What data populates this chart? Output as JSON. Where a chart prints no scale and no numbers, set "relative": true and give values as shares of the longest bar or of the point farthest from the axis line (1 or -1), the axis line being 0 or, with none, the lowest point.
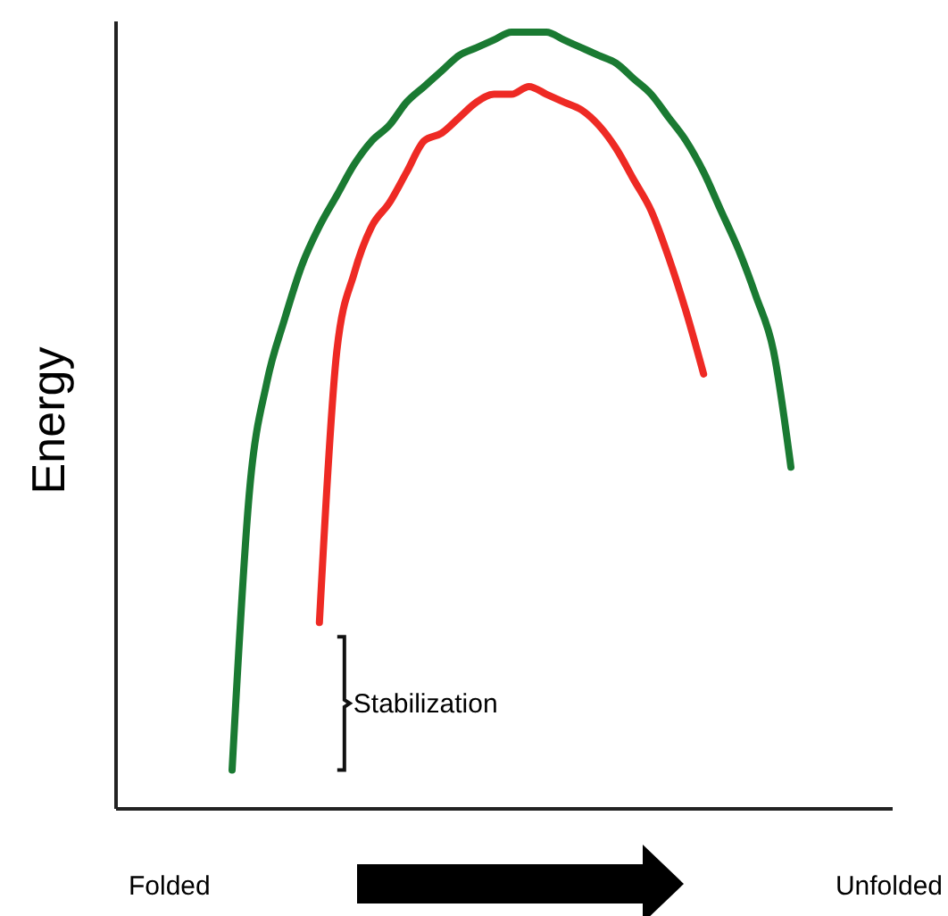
{
  "chart_data": {
    "type": "line",
    "relative": true,
    "ylabel": "Energy",
    "categories": [
      null,
      null,
      null,
      null,
      null,
      null,
      null,
      null,
      null,
      null,
      null,
      null,
      null,
      null,
      null,
      null,
      null,
      null,
      null,
      null,
      null,
      null,
      null,
      null,
      null,
      null,
      null,
      null,
      null,
      null,
      null,
      null,
      null
    ],
    "series": [
      {
        "color": "#1a7a32",
        "values": [
          0.05,
          0.41,
          0.55,
          0.63,
          0.7,
          0.75,
          0.79,
          0.83,
          0.86,
          0.88,
          0.91,
          0.93,
          0.95,
          0.97,
          0.98,
          0.99,
          1.0,
          1.0,
          1.0,
          0.99,
          0.98,
          0.97,
          0.96,
          0.94,
          0.92,
          0.89,
          0.86,
          0.82,
          0.77,
          0.72,
          0.66,
          0.59,
          0.44
        ]
      },
      {
        "color": "#ee2a24",
        "values": [
          null,
          null,
          null,
          null,
          null,
          0.24,
          0.59,
          0.69,
          0.75,
          0.78,
          0.82,
          0.86,
          0.87,
          0.89,
          0.91,
          0.92,
          0.92,
          0.93,
          0.92,
          0.91,
          0.9,
          0.88,
          0.85,
          0.81,
          0.77,
          0.71,
          0.64,
          0.56,
          null,
          null,
          null,
          null,
          null
        ]
      }
    ],
    "annotations": [
      "Stabilization",
      "Folded",
      "Unfolded"
    ]
  }
}
